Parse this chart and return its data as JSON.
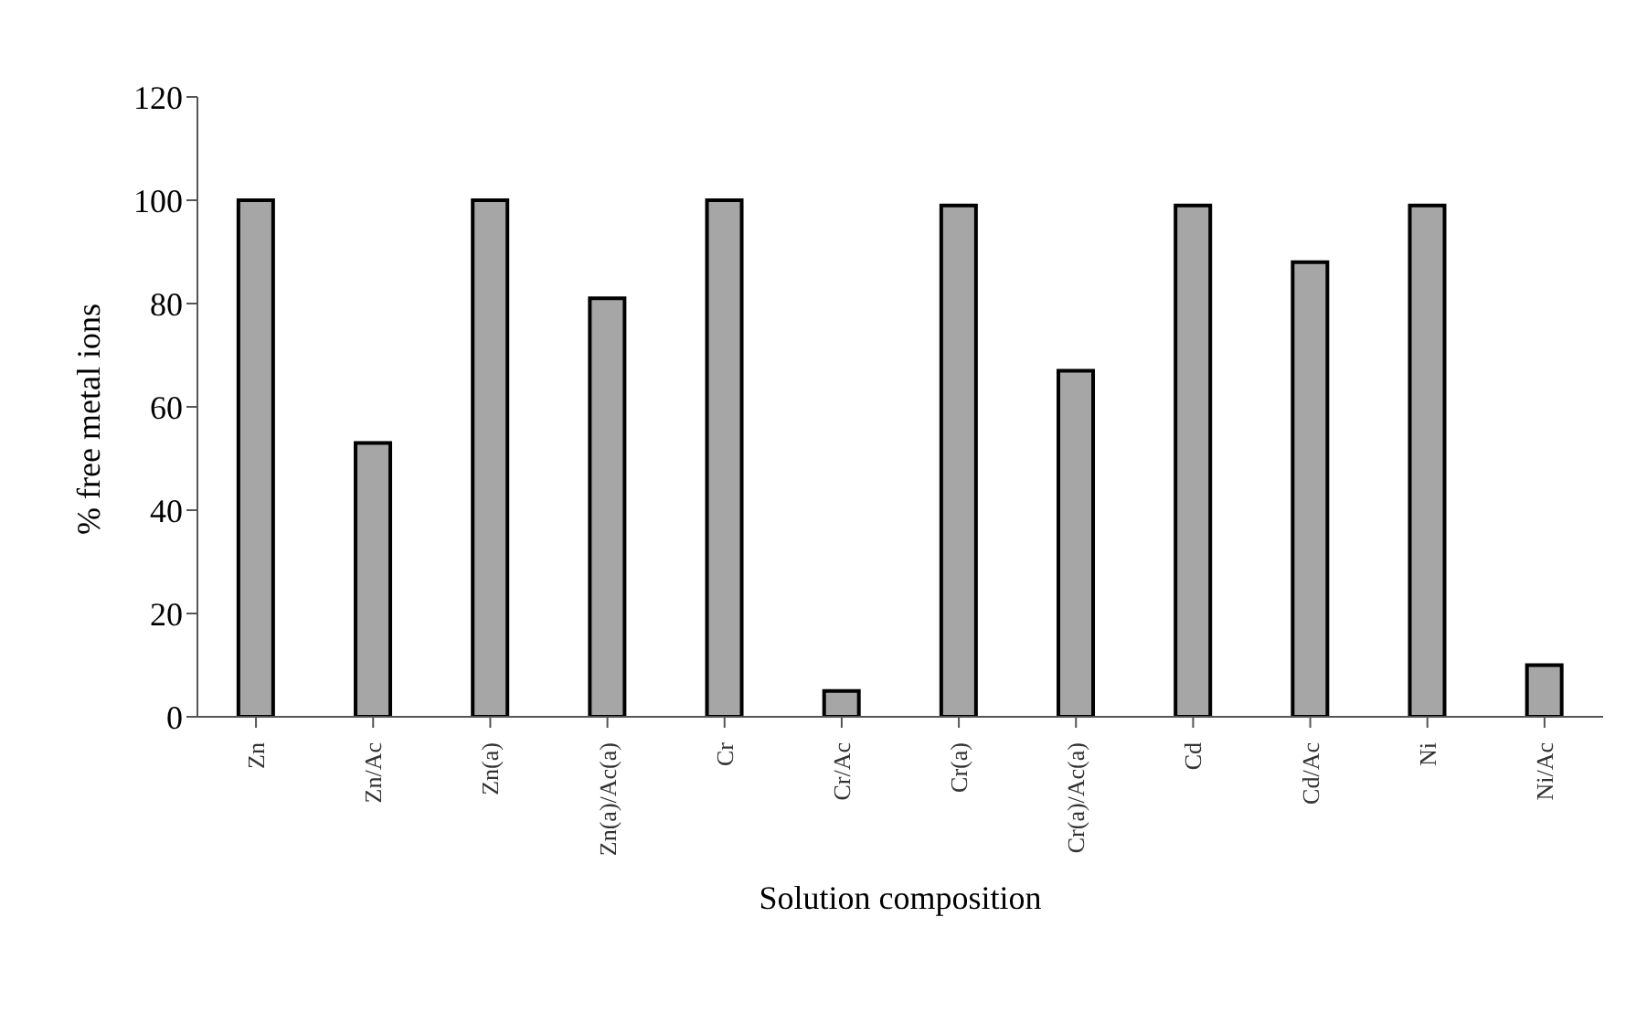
{
  "chart_data": {
    "type": "bar",
    "xlabel": "Solution composition",
    "ylabel": "% free metal ions",
    "categories": [
      "Zn",
      "Zn/Ac",
      "Zn(a)",
      "Zn(a)/Ac(a)",
      "Cr",
      "Cr/Ac",
      "Cr(a)",
      "Cr(a)/Ac(a)",
      "Cd",
      "Cd/Ac",
      "Ni",
      "Ni/Ac"
    ],
    "values": [
      100,
      53,
      100,
      81,
      100,
      5,
      99,
      67,
      99,
      88,
      99,
      10
    ],
    "color": "#a6a6a6",
    "ylim": [
      0,
      120
    ],
    "yticks": [
      0,
      20,
      40,
      60,
      80,
      100,
      120
    ],
    "grid": false,
    "legend": false
  }
}
